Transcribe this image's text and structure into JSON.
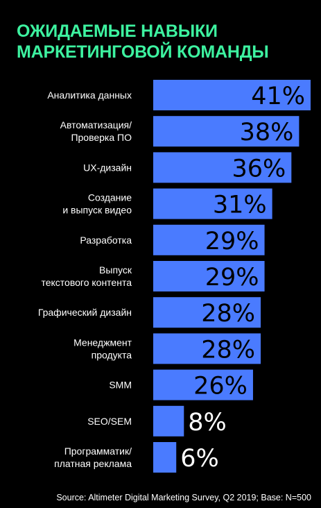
{
  "colors": {
    "background": "#000000",
    "title": "#3DF2A0",
    "bar": "#4A7BFF",
    "text": "#FFFFFF",
    "value_text": "#000000"
  },
  "chart_data": {
    "type": "bar",
    "orientation": "horizontal",
    "title_lines": [
      "ОЖИДАЕМЫЕ НАВЫКИ",
      "МАРКЕТИНГОВОЙ КОМАНДЫ"
    ],
    "categories": [
      [
        "Аналитика данных"
      ],
      [
        "Автоматизация/",
        "Проверка ПО"
      ],
      [
        "UX-дизайн"
      ],
      [
        "Создание",
        "и выпуск видео"
      ],
      [
        "Разработка"
      ],
      [
        "Выпуск",
        "текстового контента"
      ],
      [
        "Графический дизайн"
      ],
      [
        "Менеджмент",
        "продукта"
      ],
      [
        "SMM"
      ],
      [
        "SEO/SEM"
      ],
      [
        "Программатик/",
        "платная реклама"
      ]
    ],
    "values": [
      41,
      38,
      36,
      31,
      29,
      29,
      28,
      28,
      26,
      8,
      6
    ],
    "value_labels": [
      "41%",
      "38%",
      "36%",
      "31%",
      "29%",
      "29%",
      "28%",
      "28%",
      "26%",
      "8%",
      "6%"
    ],
    "xlim": [
      0,
      41
    ],
    "source": "Source: Altimeter Digital Marketing Survey, Q2 2019; Base: N=500"
  }
}
